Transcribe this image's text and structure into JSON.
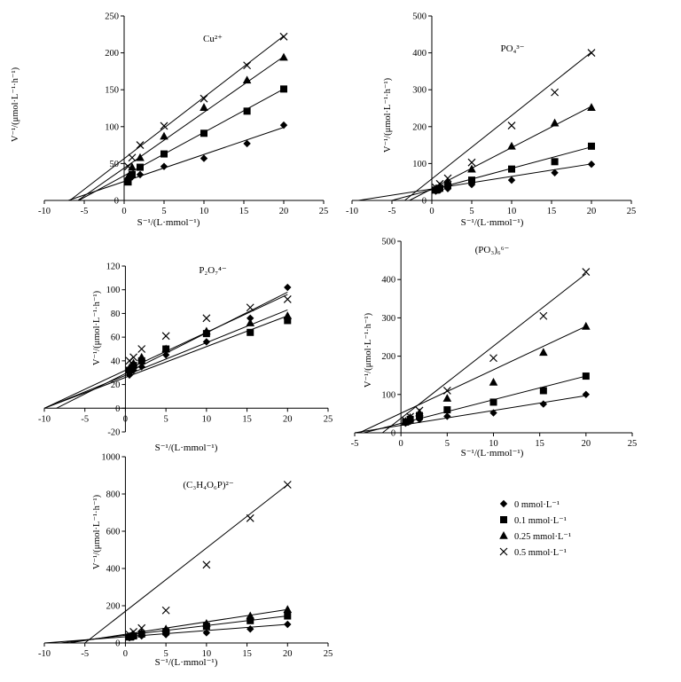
{
  "chart_data": [
    {
      "type": "scatter",
      "title": "Cu²⁺",
      "xlabel": "S⁻¹/(L·mmol⁻¹)",
      "ylabel": "V⁻¹/(μmol·L⁻¹·h⁻¹)",
      "xlim": [
        -10,
        25
      ],
      "ylim": [
        0,
        250
      ],
      "xticks": [
        -10,
        -5,
        0,
        5,
        10,
        15,
        20,
        25
      ],
      "yticks": [
        0,
        50,
        100,
        150,
        200,
        250
      ],
      "x": [
        0.5,
        1,
        2,
        5,
        10,
        15.4,
        20
      ],
      "series": [
        {
          "name": "0 mmol·L⁻¹",
          "marker": "diamond",
          "values": [
            30,
            32,
            35,
            46,
            57,
            77,
            102
          ],
          "fit": [
            -7.0,
            99.0
          ]
        },
        {
          "name": "0.1 mmol·L⁻¹",
          "marker": "square",
          "values": [
            25,
            35,
            45,
            63,
            91,
            121,
            151
          ],
          "fit": [
            -5.7,
            151.0
          ]
        },
        {
          "name": "0.25 mmol·L⁻¹",
          "marker": "triangle",
          "values": [
            32,
            45,
            58,
            87,
            126,
            163,
            194
          ],
          "fit": [
            -5.8,
            195.0
          ]
        },
        {
          "name": "0.5 mmol·L⁻¹",
          "marker": "cross",
          "values": [
            46,
            58,
            75,
            101,
            138,
            183,
            222
          ],
          "fit": [
            -6.8,
            223.0
          ]
        }
      ]
    },
    {
      "type": "scatter",
      "title": "PO₄³⁻",
      "xlabel": "S⁻¹/(L·mmol⁻¹)",
      "ylabel": "V⁻¹/(μmol·L⁻¹·h⁻¹)",
      "xlim": [
        -10,
        25
      ],
      "ylim": [
        0,
        500
      ],
      "xticks": [
        -10,
        -5,
        0,
        5,
        10,
        15,
        20,
        25
      ],
      "yticks": [
        0,
        100,
        200,
        300,
        400,
        500
      ],
      "x": [
        0.5,
        1,
        2,
        5,
        10,
        15.4,
        20
      ],
      "series": [
        {
          "name": "0 mmol·L⁻¹",
          "marker": "diamond",
          "values": [
            25,
            28,
            32,
            43,
            55,
            75,
            98
          ],
          "fit": [
            -9.2,
            99.0
          ]
        },
        {
          "name": "0.1 mmol·L⁻¹",
          "marker": "square",
          "values": [
            28,
            33,
            40,
            55,
            85,
            105,
            147
          ],
          "fit": [
            -5.0,
            145.0
          ]
        },
        {
          "name": "0.25 mmol·L⁻¹",
          "marker": "triangle",
          "values": [
            32,
            38,
            50,
            85,
            147,
            210,
            252
          ],
          "fit": [
            -2.8,
            255.0
          ]
        },
        {
          "name": "0.5 mmol·L⁻¹",
          "marker": "cross",
          "values": [
            35,
            45,
            60,
            103,
            203,
            293,
            400
          ],
          "fit": [
            -3.4,
            402.0
          ]
        }
      ]
    },
    {
      "type": "scatter",
      "title": "P₂O₇⁴⁻",
      "xlabel": "S⁻¹/(L·mmol⁻¹)",
      "ylabel": "V⁻¹/(μmol·L⁻¹·h⁻¹)",
      "xlim": [
        -10,
        25
      ],
      "ylim": [
        -20,
        120
      ],
      "xticks": [
        -10,
        -5,
        0,
        5,
        10,
        15,
        20,
        25
      ],
      "yticks": [
        -20,
        0,
        20,
        40,
        60,
        80,
        100,
        120
      ],
      "x": [
        0.5,
        1,
        2,
        5,
        10,
        15.4,
        20
      ],
      "series": [
        {
          "name": "0 mmol·L⁻¹",
          "marker": "diamond",
          "values": [
            28,
            32,
            35,
            45,
            56,
            76,
            102
          ],
          "fit": [
            -8.5,
            98.0
          ]
        },
        {
          "name": "0.1 mmol·L⁻¹",
          "marker": "square",
          "values": [
            32,
            36,
            40,
            50,
            63,
            64,
            74
          ],
          "fit": [
            -10.0,
            78.0
          ]
        },
        {
          "name": "0.25 mmol·L⁻¹",
          "marker": "triangle",
          "values": [
            34,
            38,
            43,
            50,
            65,
            72,
            78
          ],
          "fit": [
            -10.0,
            83.0
          ]
        },
        {
          "name": "0.5 mmol·L⁻¹",
          "marker": "cross",
          "values": [
            40,
            43,
            50,
            61,
            76,
            85,
            92
          ],
          "fit": [
            -10.0,
            96.0
          ]
        }
      ]
    },
    {
      "type": "scatter",
      "title": "(PO₃)₆⁶⁻",
      "xlabel": "S⁻¹/(L·mmol⁻¹)",
      "ylabel": "V⁻¹/(μmol·L⁻¹·h⁻¹)",
      "xlim": [
        -5,
        25
      ],
      "ylim": [
        0,
        500
      ],
      "xticks": [
        -5,
        0,
        5,
        10,
        15,
        20,
        25
      ],
      "yticks": [
        0,
        100,
        200,
        300,
        400,
        500
      ],
      "x": [
        0.5,
        1,
        2,
        5,
        10,
        15.4,
        20
      ],
      "series": [
        {
          "name": "0 mmol·L⁻¹",
          "marker": "diamond",
          "values": [
            25,
            30,
            35,
            43,
            52,
            75,
            100
          ],
          "fit": [
            -5.0,
            97.0
          ]
        },
        {
          "name": "0.1 mmol·L⁻¹",
          "marker": "square",
          "values": [
            28,
            35,
            45,
            60,
            80,
            110,
            148
          ],
          "fit": [
            -4.0,
            148.0
          ]
        },
        {
          "name": "0.25 mmol·L⁻¹",
          "marker": "triangle",
          "values": [
            30,
            40,
            52,
            90,
            132,
            210,
            278
          ],
          "fit": [
            -4.5,
            278.0
          ]
        },
        {
          "name": "0.5 mmol·L⁻¹",
          "marker": "cross",
          "values": [
            32,
            42,
            58,
            110,
            195,
            305,
            420
          ],
          "fit": [
            -2.0,
            415.0
          ]
        }
      ]
    },
    {
      "type": "scatter",
      "title": "(C₃H₄O₆P)²⁻",
      "xlabel": "S⁻¹/(L·mmol⁻¹)",
      "ylabel": "V⁻¹/(μmol·L⁻¹·h⁻¹)",
      "xlim": [
        -10,
        25
      ],
      "ylim": [
        0,
        1000
      ],
      "xticks": [
        -10,
        -5,
        0,
        5,
        10,
        15,
        20,
        25
      ],
      "yticks": [
        0,
        200,
        400,
        600,
        800,
        1000
      ],
      "x": [
        0.5,
        1,
        2,
        5,
        10,
        15.4,
        20
      ],
      "series": [
        {
          "name": "0 mmol·L⁻¹",
          "marker": "diamond",
          "values": [
            28,
            32,
            38,
            45,
            55,
            75,
            100
          ],
          "fit": [
            -10.0,
            100.0
          ]
        },
        {
          "name": "0.1 mmol·L⁻¹",
          "marker": "square",
          "values": [
            32,
            38,
            48,
            60,
            90,
            120,
            145
          ],
          "fit": [
            -8.0,
            145.0
          ]
        },
        {
          "name": "0.25 mmol·L⁻¹",
          "marker": "triangle",
          "values": [
            35,
            45,
            55,
            75,
            105,
            145,
            180
          ],
          "fit": [
            -7.0,
            180.0
          ]
        },
        {
          "name": "0.5 mmol·L⁻¹",
          "marker": "cross",
          "values": [
            45,
            60,
            80,
            175,
            420,
            670,
            850
          ],
          "fit": [
            -5.0,
            850.0
          ]
        }
      ]
    }
  ],
  "legend": {
    "items": [
      {
        "label": "0 mmol·L⁻¹",
        "marker": "diamond"
      },
      {
        "label": "0.1 mmol·L⁻¹",
        "marker": "square"
      },
      {
        "label": "0.25 mmol·L⁻¹",
        "marker": "triangle"
      },
      {
        "label": "0.5 mmol·L⁻¹",
        "marker": "cross"
      }
    ]
  }
}
